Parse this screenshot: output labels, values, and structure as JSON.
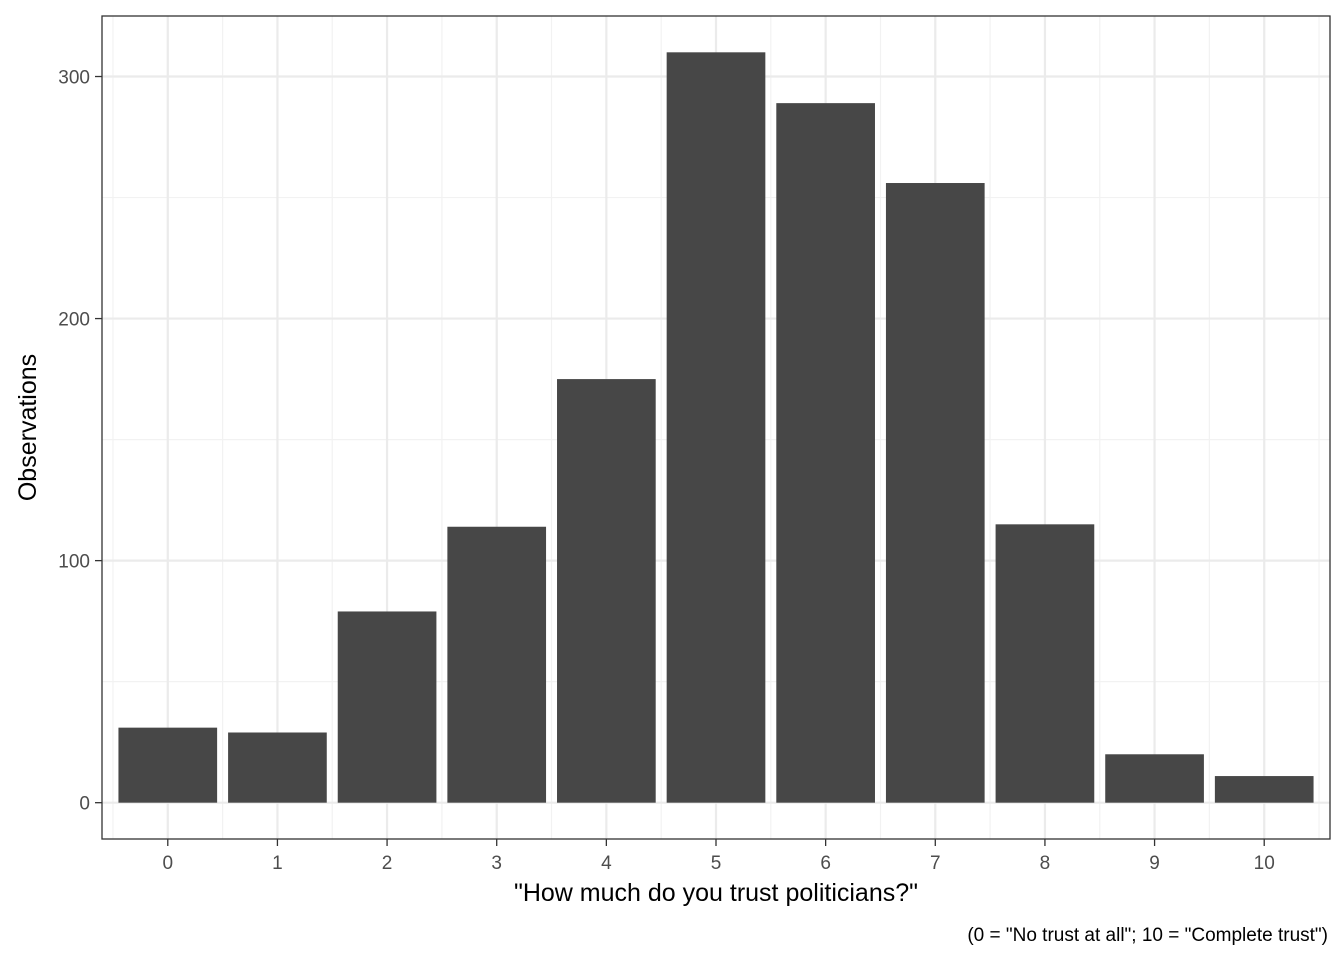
{
  "chart_data": {
    "type": "bar",
    "categories": [
      "0",
      "1",
      "2",
      "3",
      "4",
      "5",
      "6",
      "7",
      "8",
      "9",
      "10"
    ],
    "values": [
      31,
      29,
      79,
      114,
      175,
      310,
      289,
      256,
      115,
      20,
      11
    ],
    "title": "",
    "xlabel": "\"How much do you trust politicians?\"",
    "ylabel": "Observations",
    "caption": "(0 = \"No trust at all\"; 10 = \"Complete trust\")",
    "ylim": [
      -15,
      325
    ],
    "y_ticks": [
      0,
      100,
      200,
      300
    ],
    "grid": true,
    "legend": "none",
    "colors": {
      "bar": "#474747",
      "panel_border": "#333333",
      "grid_major": "#ebebeb",
      "grid_minor": "#f2f2f2",
      "background": "#ffffff"
    }
  }
}
